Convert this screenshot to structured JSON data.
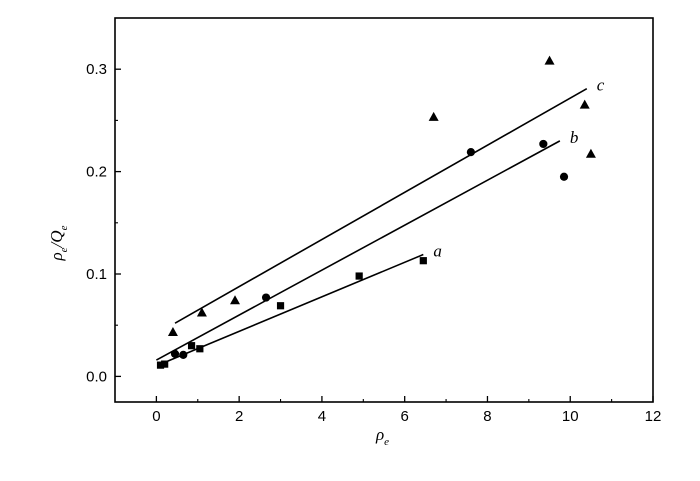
{
  "chart_data": {
    "type": "scatter",
    "title": "",
    "xlabel": {
      "main": "ρ",
      "sub": "e"
    },
    "ylabel": {
      "main": "ρ",
      "sub": "e",
      "sep": "/",
      "main2": "Q",
      "sub2": "e"
    },
    "xlim": [
      -1,
      12
    ],
    "ylim": [
      -0.025,
      0.35
    ],
    "xticks": [
      0,
      2,
      4,
      6,
      8,
      10,
      12
    ],
    "xtick_labels": [
      "0",
      "2",
      "4",
      "6",
      "8",
      "10",
      "12"
    ],
    "yticks": [
      0.0,
      0.1,
      0.2,
      0.3
    ],
    "ytick_labels": [
      "0.0",
      "0.1",
      "0.2",
      "0.3"
    ],
    "grid": false,
    "series": [
      {
        "name": "a",
        "marker": "square",
        "points": [
          [
            0.1,
            0.011
          ],
          [
            0.2,
            0.012
          ],
          [
            0.85,
            0.03
          ],
          [
            1.05,
            0.027
          ],
          [
            3.0,
            0.069
          ],
          [
            4.9,
            0.098
          ],
          [
            6.45,
            0.113
          ]
        ],
        "fit_line": [
          [
            0.1,
            0.012
          ],
          [
            6.45,
            0.119
          ]
        ]
      },
      {
        "name": "b",
        "marker": "circle",
        "points": [
          [
            0.45,
            0.022
          ],
          [
            0.65,
            0.021
          ],
          [
            2.65,
            0.077
          ],
          [
            7.6,
            0.219
          ],
          [
            9.35,
            0.227
          ],
          [
            9.85,
            0.195
          ]
        ],
        "fit_line": [
          [
            0.0,
            0.016
          ],
          [
            9.75,
            0.23
          ]
        ]
      },
      {
        "name": "c",
        "marker": "triangle",
        "points": [
          [
            0.4,
            0.043
          ],
          [
            1.1,
            0.062
          ],
          [
            1.9,
            0.074
          ],
          [
            6.7,
            0.253
          ],
          [
            9.5,
            0.308
          ],
          [
            10.35,
            0.265
          ],
          [
            10.5,
            0.217
          ]
        ],
        "fit_line": [
          [
            0.45,
            0.052
          ],
          [
            10.4,
            0.281
          ]
        ]
      }
    ]
  }
}
